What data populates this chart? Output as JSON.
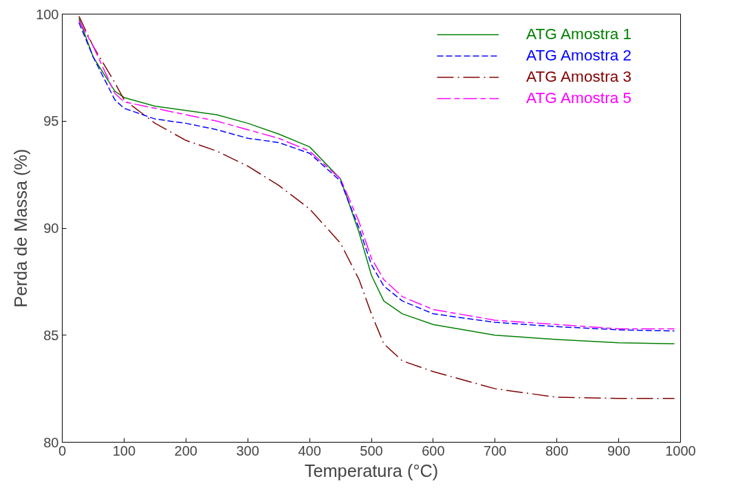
{
  "chart_data": {
    "type": "line",
    "xlabel": "Temperatura (°C)",
    "ylabel": "Perda de Massa (%)",
    "xlim": [
      0,
      1000
    ],
    "ylim": [
      80,
      100
    ],
    "xticks": [
      0,
      100,
      200,
      300,
      400,
      500,
      600,
      700,
      800,
      900,
      1000
    ],
    "yticks": [
      80,
      85,
      90,
      95,
      100
    ],
    "grid": false,
    "legend": "top right",
    "x": [
      27,
      50,
      85,
      100,
      150,
      200,
      250,
      300,
      350,
      400,
      450,
      480,
      500,
      520,
      550,
      600,
      700,
      800,
      900,
      990
    ],
    "series": [
      {
        "name": "ATG Amostra 1",
        "color": "#008000",
        "line_style": "solid",
        "values": [
          99.8,
          98.0,
          96.4,
          96.1,
          95.7,
          95.5,
          95.3,
          94.9,
          94.4,
          93.8,
          92.3,
          89.8,
          87.8,
          86.6,
          86.0,
          85.5,
          85.0,
          84.8,
          84.65,
          84.6
        ]
      },
      {
        "name": "ATG Amostra 2",
        "color": "#0000ff",
        "line_style": "dashed",
        "values": [
          99.6,
          98.0,
          96.0,
          95.6,
          95.1,
          94.9,
          94.6,
          94.2,
          94.0,
          93.5,
          92.2,
          90.0,
          88.3,
          87.3,
          86.6,
          86.0,
          85.6,
          85.4,
          85.25,
          85.2
        ]
      },
      {
        "name": "ATG Amostra 3",
        "color": "#800000",
        "line_style": "dashdot",
        "values": [
          99.9,
          98.5,
          96.8,
          96.0,
          94.9,
          94.1,
          93.6,
          92.9,
          92.0,
          90.9,
          89.3,
          87.6,
          86.0,
          84.6,
          83.8,
          83.3,
          82.5,
          82.1,
          82.05,
          82.05
        ]
      },
      {
        "name": "ATG Amostra 5",
        "color": "#ff00ff",
        "line_style": "longdash",
        "values": [
          99.7,
          98.5,
          96.3,
          95.9,
          95.6,
          95.3,
          95.0,
          94.6,
          94.2,
          93.6,
          92.3,
          90.3,
          88.6,
          87.6,
          86.8,
          86.2,
          85.7,
          85.5,
          85.3,
          85.3
        ]
      }
    ]
  }
}
